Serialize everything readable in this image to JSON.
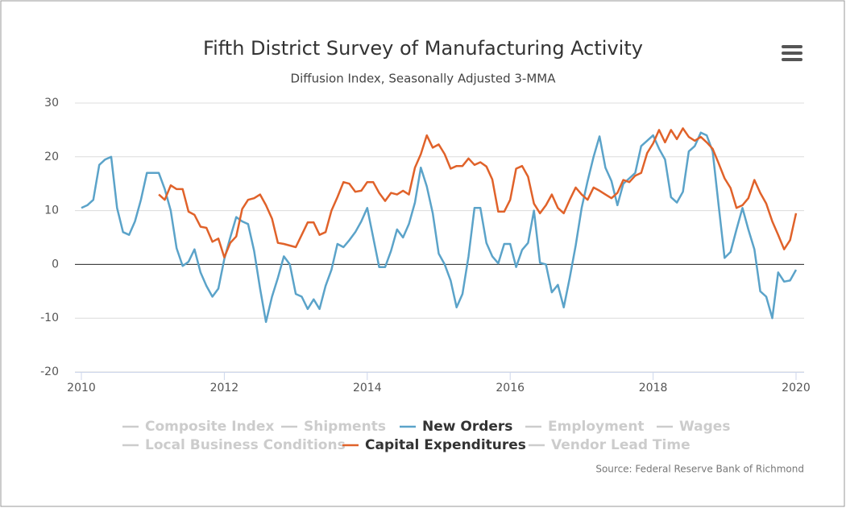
{
  "chart_data": {
    "type": "line",
    "title": "Fifth District Survey of Manufacturing Activity",
    "subtitle": "Diffusion Index, Seasonally Adjusted 3-MMA",
    "source": "Source: Federal Reserve Bank of Richmond",
    "x": [
      2010,
      2010.083,
      2010.167,
      2010.25,
      2010.333,
      2010.417,
      2010.5,
      2010.583,
      2010.667,
      2010.75,
      2010.833,
      2010.917,
      2011,
      2011.083,
      2011.167,
      2011.25,
      2011.333,
      2011.417,
      2011.5,
      2011.583,
      2011.667,
      2011.75,
      2011.833,
      2011.917,
      2012,
      2012.083,
      2012.167,
      2012.25,
      2012.333,
      2012.417,
      2012.5,
      2012.583,
      2012.667,
      2012.75,
      2012.833,
      2012.917,
      2013,
      2013.083,
      2013.167,
      2013.25,
      2013.333,
      2013.417,
      2013.5,
      2013.583,
      2013.667,
      2013.75,
      2013.833,
      2013.917,
      2014,
      2014.083,
      2014.167,
      2014.25,
      2014.333,
      2014.417,
      2014.5,
      2014.583,
      2014.667,
      2014.75,
      2014.833,
      2014.917,
      2015,
      2015.083,
      2015.167,
      2015.25,
      2015.333,
      2015.417,
      2015.5,
      2015.583,
      2015.667,
      2015.75,
      2015.833,
      2015.917,
      2016,
      2016.083,
      2016.167,
      2016.25,
      2016.333,
      2016.417,
      2016.5,
      2016.583,
      2016.667,
      2016.75,
      2016.833,
      2016.917,
      2017,
      2017.083,
      2017.167,
      2017.25,
      2017.333,
      2017.417,
      2017.5,
      2017.583,
      2017.667,
      2017.75,
      2017.833,
      2017.917,
      2018,
      2018.083,
      2018.167,
      2018.25,
      2018.333,
      2018.417,
      2018.5,
      2018.583,
      2018.667,
      2018.75,
      2018.833,
      2018.917,
      2019,
      2019.083,
      2019.167,
      2019.25,
      2019.333,
      2019.417,
      2019.5,
      2019.583,
      2019.667,
      2019.75,
      2019.833,
      2019.917,
      2020
    ],
    "series": [
      {
        "name": "Composite Index",
        "color": "#cccccc",
        "visible": false
      },
      {
        "name": "Shipments",
        "color": "#cccccc",
        "visible": false
      },
      {
        "name": "New Orders",
        "color": "#5ba3c9",
        "visible": true,
        "values": [
          10.5,
          11,
          12,
          18.5,
          19.5,
          20,
          10.5,
          6,
          5.5,
          8,
          12,
          17,
          17,
          17,
          14,
          10,
          3,
          -0.3,
          0.5,
          2.8,
          -1.5,
          -4,
          -6,
          -4.5,
          1,
          5,
          8.8,
          8,
          7.5,
          2.5,
          -4.5,
          -10.7,
          -6,
          -2.5,
          1.5,
          0,
          -5.5,
          -6,
          -8.3,
          -6.5,
          -8.3,
          -4,
          -1,
          3.8,
          3.2,
          4.5,
          6,
          8,
          10.5,
          5,
          -0.5,
          -0.5,
          2.5,
          6.5,
          5,
          7.5,
          11.5,
          18,
          14.5,
          9.5,
          2,
          0,
          -3,
          -8,
          -5.5,
          1.5,
          10.5,
          10.5,
          4,
          1.5,
          0.2,
          3.8,
          3.8,
          -0.5,
          2.7,
          4,
          10,
          0.3,
          0,
          -5.2,
          -3.8,
          -8,
          -2.5,
          3.5,
          10.5,
          15.5,
          20,
          23.8,
          18,
          15.5,
          11,
          15,
          16,
          17,
          22,
          23,
          24,
          21.5,
          19.5,
          12.5,
          11.5,
          13.5,
          21,
          22,
          24.5,
          24,
          21,
          11,
          1.2,
          2.3,
          6.5,
          10.5,
          6.5,
          2.8,
          -5,
          -6,
          -10,
          -1.5,
          -3.2,
          -3,
          -1
        ]
      },
      {
        "name": "Employment",
        "color": "#cccccc",
        "visible": false
      },
      {
        "name": "Wages",
        "color": "#cccccc",
        "visible": false
      },
      {
        "name": "Local Business Conditions",
        "color": "#cccccc",
        "visible": false
      },
      {
        "name": "Capital Expenditures",
        "color": "#e0622a",
        "visible": true,
        "values": [
          null,
          null,
          null,
          null,
          null,
          null,
          null,
          null,
          null,
          null,
          null,
          null,
          null,
          13,
          12,
          14.7,
          14,
          14,
          9.8,
          9.2,
          7,
          6.8,
          4.2,
          4.8,
          1.3,
          4,
          5.2,
          10.3,
          12,
          12.3,
          13,
          11,
          8.5,
          4,
          3.8,
          3.5,
          3.2,
          5.5,
          7.8,
          7.8,
          5.5,
          6,
          10,
          12.5,
          15.3,
          15,
          13.5,
          13.7,
          15.3,
          15.3,
          13.3,
          11.8,
          13.3,
          13,
          13.7,
          13,
          18,
          20.5,
          24,
          21.7,
          22.3,
          20.5,
          17.8,
          18.3,
          18.3,
          19.7,
          18.5,
          19,
          18.2,
          15.8,
          9.8,
          9.8,
          12,
          17.8,
          18.3,
          16.3,
          11.3,
          9.5,
          11,
          13,
          10.5,
          9.5,
          12,
          14.3,
          13,
          12,
          14.3,
          13.7,
          13,
          12.3,
          13.3,
          15.7,
          15.3,
          16.5,
          17,
          20.7,
          22.5,
          25,
          22.7,
          25,
          23.3,
          25.3,
          23.7,
          23,
          23.7,
          22.7,
          21.5,
          18.8,
          16,
          14.2,
          10.5,
          11,
          12.3,
          15.7,
          13.3,
          11.3,
          8,
          5.5,
          2.8,
          4.5,
          9.5
        ]
      },
      {
        "name": "Vendor Lead Time",
        "color": "#cccccc",
        "visible": false
      }
    ],
    "xlim": [
      2010,
      2020
    ],
    "xticks": [
      2010,
      2012,
      2014,
      2016,
      2018,
      2020
    ],
    "ylim": [
      -20,
      30
    ],
    "yticks": [
      -20,
      -10,
      0,
      10,
      20,
      30
    ],
    "grid": true
  }
}
